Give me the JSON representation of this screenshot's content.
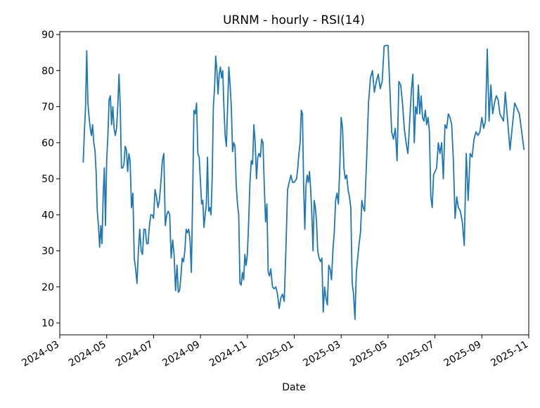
{
  "chart_data": {
    "type": "line",
    "title": "URNM - hourly - RSI(14)",
    "xlabel": "Date",
    "xlim": [
      "2024-03",
      "2025-11"
    ],
    "xticks": [
      "2024-03",
      "2024-05",
      "2024-07",
      "2024-09",
      "2024-11",
      "2025-01",
      "2025-03",
      "2025-05",
      "2025-07",
      "2025-09",
      "2025-11"
    ],
    "ylim": [
      6.7,
      90.8
    ],
    "yticks": [
      10,
      20,
      30,
      40,
      50,
      60,
      70,
      80,
      90
    ],
    "grid": false,
    "series": [
      {
        "name": "RSI(14)",
        "color": "#1f77b4",
        "x": [
          "2024-04",
          "2024-04",
          "2024-04",
          "2024-04",
          "2024-04",
          "2024-04",
          "2024-04",
          "2024-04",
          "2024-04",
          "2024-04",
          "2024-04",
          "2024-04",
          "2024-04",
          "2024-04",
          "2024-04",
          "2024-04",
          "2024-04",
          "2024-04",
          "2024-04",
          "2024-04",
          "2024-05",
          "2024-05",
          "2024-05",
          "2024-05",
          "2024-05",
          "2024-05",
          "2024-05",
          "2024-05",
          "2024-05",
          "2024-05",
          "2024-05",
          "2024-05",
          "2024-05",
          "2024-05",
          "2024-05",
          "2024-05",
          "2024-05",
          "2024-05",
          "2024-05",
          "2024-06",
          "2024-06",
          "2024-06",
          "2024-06",
          "2024-06",
          "2024-06",
          "2024-06",
          "2024-06",
          "2024-06",
          "2024-06",
          "2024-06",
          "2024-06",
          "2024-06",
          "2024-06",
          "2024-06",
          "2024-06",
          "2024-06",
          "2024-07",
          "2024-07",
          "2024-07",
          "2024-07",
          "2024-07",
          "2024-07",
          "2024-07",
          "2024-07",
          "2024-07",
          "2024-07",
          "2024-07",
          "2024-07",
          "2024-07",
          "2024-07",
          "2024-07",
          "2024-07",
          "2024-08",
          "2024-08",
          "2024-08",
          "2024-08",
          "2024-08",
          "2024-08",
          "2024-08",
          "2024-08",
          "2024-08",
          "2024-08",
          "2024-08",
          "2024-08",
          "2024-08",
          "2024-08",
          "2024-08",
          "2024-08",
          "2024-08",
          "2024-08",
          "2024-09",
          "2024-09",
          "2024-09",
          "2024-09",
          "2024-09",
          "2024-09",
          "2024-09",
          "2024-09",
          "2024-09",
          "2024-09",
          "2024-09",
          "2024-09",
          "2024-09",
          "2024-09",
          "2024-09",
          "2024-09",
          "2024-09",
          "2024-09",
          "2024-09",
          "2024-09",
          "2024-10",
          "2024-10",
          "2024-10",
          "2024-10",
          "2024-10",
          "2024-10",
          "2024-10",
          "2024-10",
          "2024-10",
          "2024-10",
          "2024-10",
          "2024-10",
          "2024-10",
          "2024-10",
          "2024-10",
          "2024-10",
          "2024-10",
          "2024-10",
          "2024-10",
          "2024-11",
          "2024-11",
          "2024-11",
          "2024-11",
          "2024-11",
          "2024-11",
          "2024-11",
          "2024-11",
          "2024-11",
          "2024-11",
          "2024-11",
          "2024-11",
          "2024-11",
          "2024-11",
          "2024-11",
          "2024-11",
          "2024-11",
          "2024-11",
          "2024-12",
          "2024-12",
          "2024-12",
          "2024-12",
          "2024-12",
          "2024-12",
          "2024-12",
          "2024-12",
          "2024-12",
          "2024-12",
          "2024-12",
          "2024-12",
          "2024-12",
          "2024-12",
          "2025-01",
          "2025-01",
          "2025-01",
          "2025-01",
          "2025-01",
          "2025-01",
          "2025-01",
          "2025-01",
          "2025-01",
          "2025-01",
          "2025-01",
          "2025-01",
          "2025-01",
          "2025-01",
          "2025-01",
          "2025-01",
          "2025-01",
          "2025-01",
          "2025-01",
          "2025-01",
          "2025-02",
          "2025-02",
          "2025-02",
          "2025-02",
          "2025-02",
          "2025-02",
          "2025-02",
          "2025-02",
          "2025-02",
          "2025-02",
          "2025-02",
          "2025-02",
          "2025-02",
          "2025-02",
          "2025-02",
          "2025-02",
          "2025-02",
          "2025-03",
          "2025-03",
          "2025-03",
          "2025-03",
          "2025-03",
          "2025-03",
          "2025-03",
          "2025-03",
          "2025-03",
          "2025-03",
          "2025-03",
          "2025-03",
          "2025-03",
          "2025-03",
          "2025-03",
          "2025-03",
          "2025-03",
          "2025-04",
          "2025-04",
          "2025-04",
          "2025-04",
          "2025-04",
          "2025-04",
          "2025-04",
          "2025-04",
          "2025-04",
          "2025-04",
          "2025-04",
          "2025-04",
          "2025-05",
          "2025-05",
          "2025-05",
          "2025-05",
          "2025-05",
          "2025-05",
          "2025-05",
          "2025-05",
          "2025-05",
          "2025-05",
          "2025-05",
          "2025-05",
          "2025-05",
          "2025-06",
          "2025-06",
          "2025-06",
          "2025-06",
          "2025-06",
          "2025-06",
          "2025-06",
          "2025-06",
          "2025-06",
          "2025-06",
          "2025-06",
          "2025-06",
          "2025-06",
          "2025-06",
          "2025-06",
          "2025-06",
          "2025-06",
          "2025-07",
          "2025-07",
          "2025-07",
          "2025-07",
          "2025-07",
          "2025-07",
          "2025-07",
          "2025-07",
          "2025-07",
          "2025-07",
          "2025-07",
          "2025-07",
          "2025-07",
          "2025-07",
          "2025-08",
          "2025-08",
          "2025-08",
          "2025-08",
          "2025-08",
          "2025-08",
          "2025-08",
          "2025-08",
          "2025-08",
          "2025-08",
          "2025-08",
          "2025-08",
          "2025-09",
          "2025-09",
          "2025-09",
          "2025-09",
          "2025-09",
          "2025-09",
          "2025-09",
          "2025-09",
          "2025-09",
          "2025-09",
          "2025-09",
          "2025-09",
          "2025-09",
          "2025-10",
          "2025-10",
          "2025-10",
          "2025-10",
          "2025-10"
        ],
        "values": [
          54.5,
          63,
          70,
          85.5,
          71,
          67,
          64,
          62,
          65,
          60,
          58,
          52,
          41,
          37,
          31,
          37,
          32,
          45,
          53,
          37,
          55,
          62,
          72,
          73,
          65,
          70,
          64,
          62,
          64,
          70,
          79,
          70,
          53,
          53,
          54,
          59,
          58,
          52,
          57,
          55,
          42,
          46,
          28,
          25,
          21,
          30,
          36,
          30,
          29,
          36,
          36,
          32,
          32,
          37,
          40,
          40,
          39,
          47,
          45,
          42,
          44,
          49,
          55,
          57,
          37,
          40,
          41,
          40,
          28,
          33,
          29,
          19,
          26,
          18.5,
          19,
          23,
          28,
          27,
          30,
          36,
          35,
          36,
          33,
          24,
          45,
          69,
          68,
          71,
          57,
          56,
          49,
          43,
          44,
          36.5,
          40,
          43,
          56,
          41,
          42,
          40,
          50,
          70,
          75,
          84,
          80,
          73.5,
          79,
          81,
          78,
          80,
          70,
          62,
          59,
          70,
          81,
          76,
          70,
          57.5,
          60,
          59,
          48,
          43,
          40,
          21,
          20.5,
          24,
          22,
          29,
          26,
          29,
          38,
          49,
          55,
          54,
          65,
          60,
          50,
          56,
          57,
          56,
          61,
          60,
          48,
          38,
          43,
          24,
          23,
          25,
          20,
          19.5,
          20,
          18,
          14,
          17,
          18,
          16,
          30,
          47,
          49,
          51,
          49,
          49,
          49.5,
          50,
          53,
          57,
          60,
          69,
          68,
          48,
          36,
          48,
          51,
          49,
          52,
          47,
          40,
          30,
          44,
          42,
          38,
          30,
          28,
          27,
          28,
          13,
          20,
          17,
          15,
          26,
          25,
          22,
          30,
          35,
          44,
          46,
          43,
          53,
          67,
          64,
          53,
          50,
          51,
          47,
          45,
          42,
          21,
          18,
          11,
          24,
          28,
          32,
          35,
          44,
          42,
          41,
          55,
          71,
          78,
          80,
          74,
          77,
          79,
          75,
          77,
          86.8,
          87,
          87,
          75,
          63,
          61,
          64,
          55,
          77,
          76,
          71,
          64,
          60,
          57,
          66,
          75,
          79,
          60,
          70,
          68,
          76,
          68,
          73,
          67,
          66,
          69,
          65,
          67,
          63,
          45,
          42,
          51,
          52,
          53,
          60,
          57,
          60,
          50,
          65,
          64,
          68,
          67,
          65,
          55,
          39,
          45,
          42,
          41,
          38,
          31.5,
          57,
          44,
          57,
          56,
          61,
          63,
          62,
          63,
          67,
          64,
          66,
          86,
          66,
          76,
          68,
          71,
          73,
          72,
          68,
          67,
          66,
          74,
          58,
          71,
          68,
          58
        ]
      }
    ]
  }
}
